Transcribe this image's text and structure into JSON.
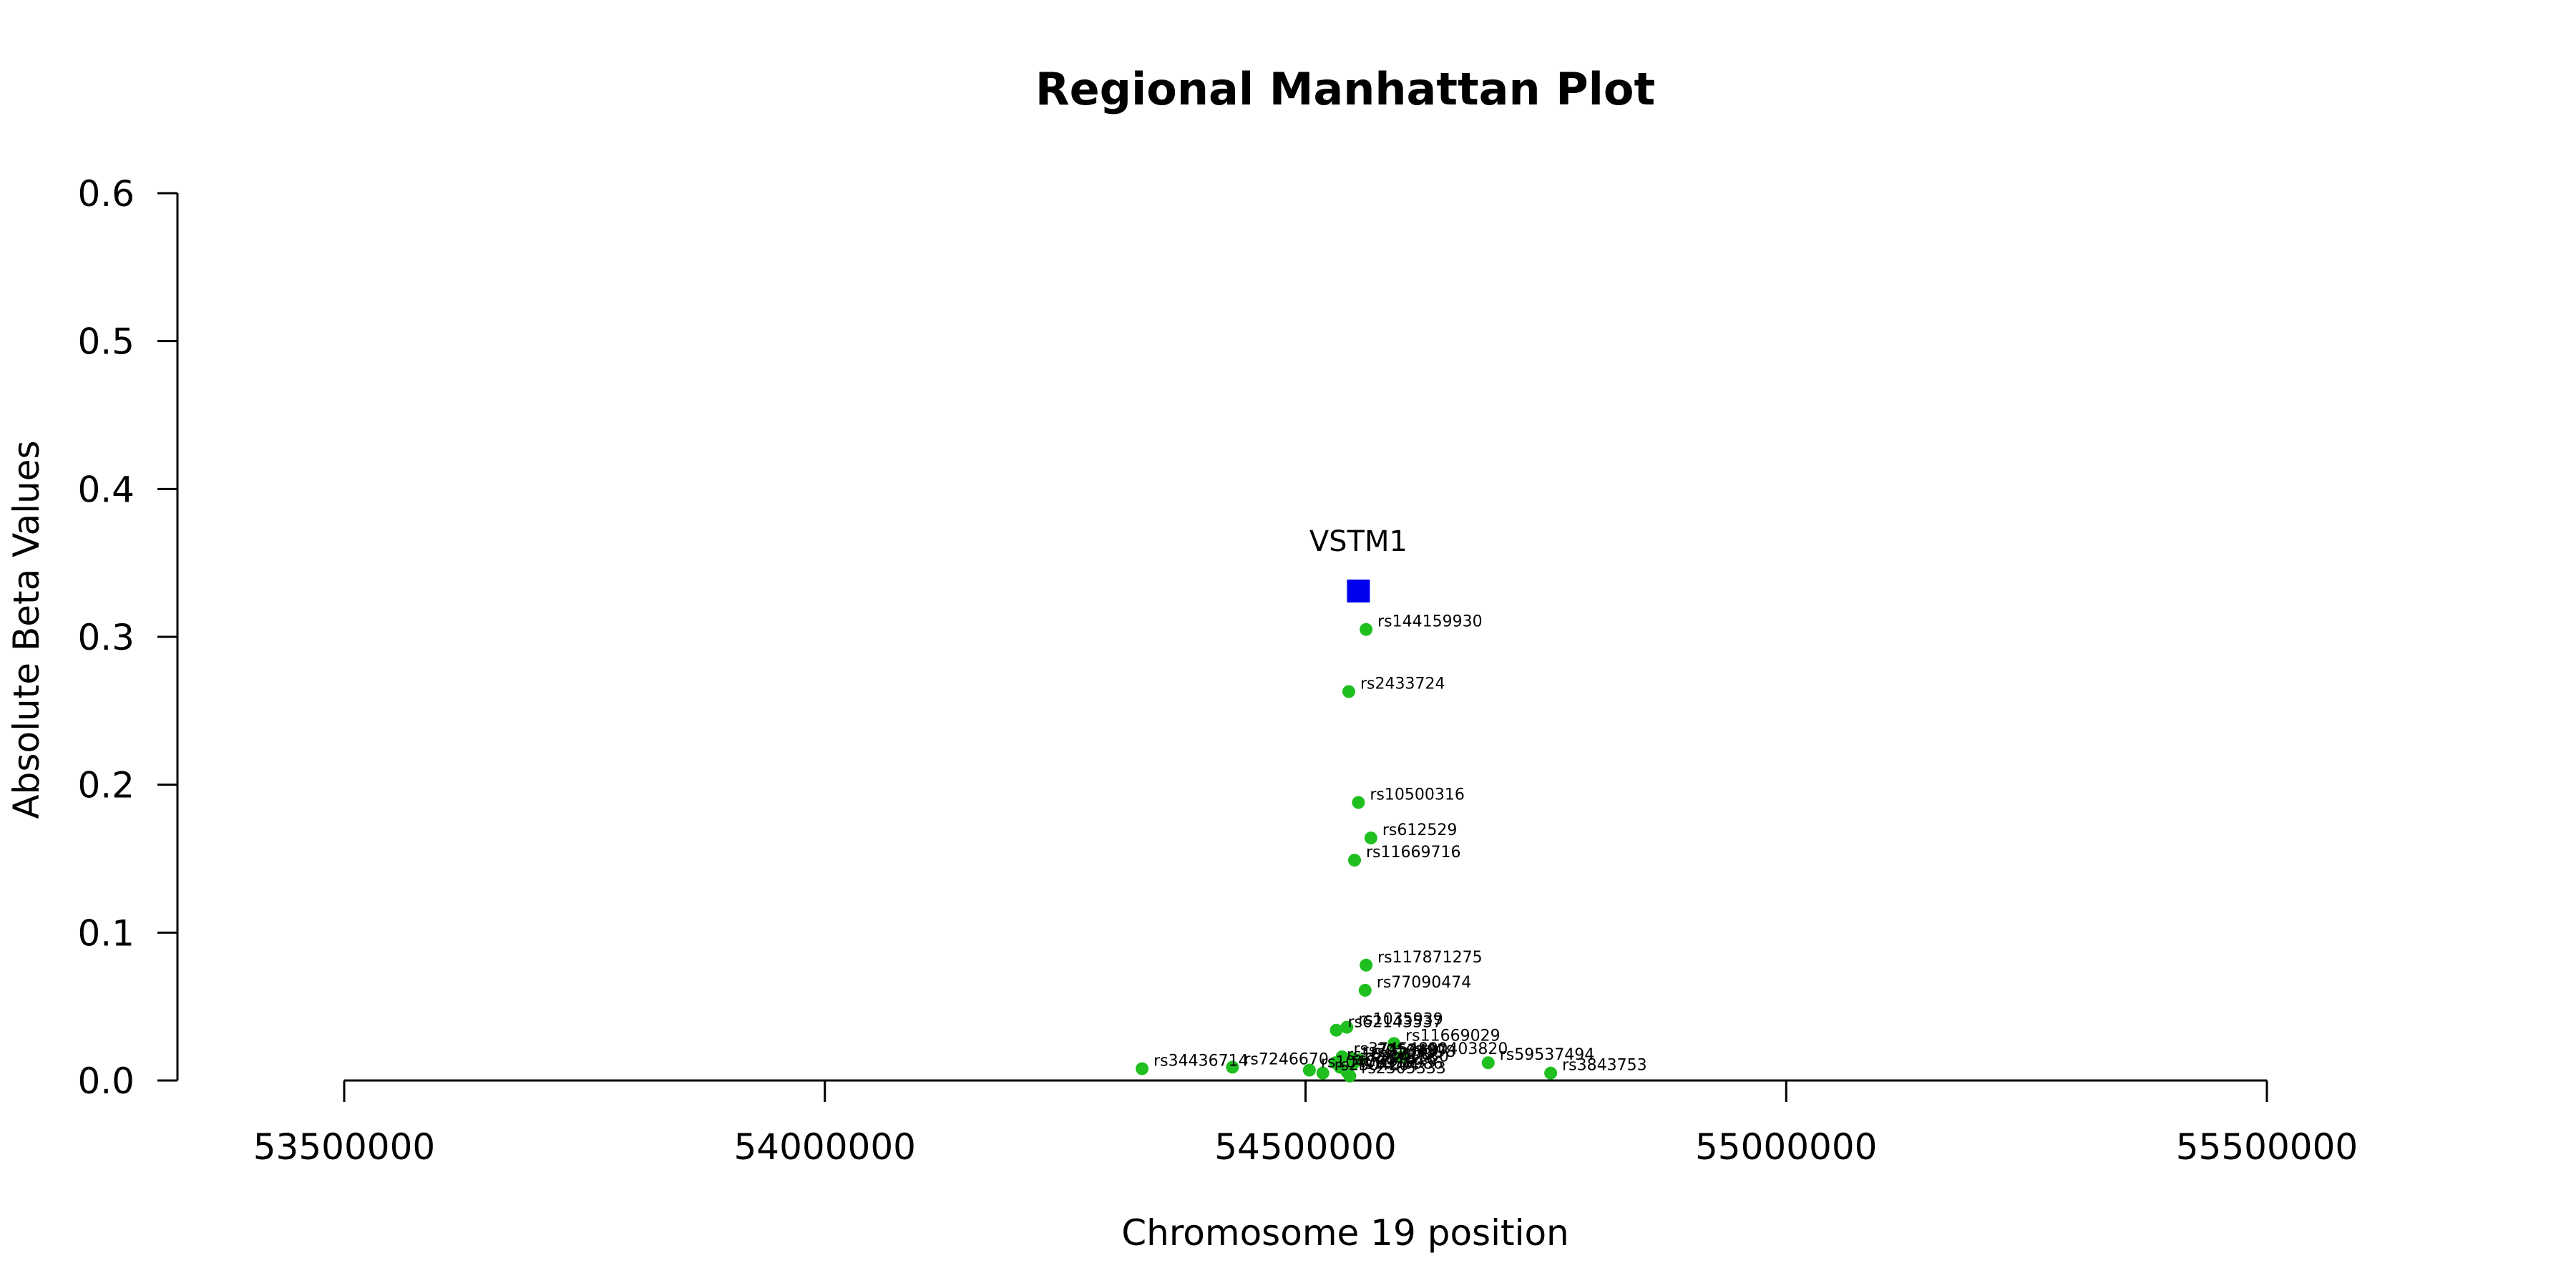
{
  "chart_data": {
    "type": "scatter",
    "title": "Regional Manhattan Plot",
    "xlabel": "Chromosome 19 position",
    "ylabel": "Absolute Beta Values",
    "xlim": [
      53500000,
      55500000
    ],
    "ylim": [
      0,
      0.6
    ],
    "x_ticks": [
      {
        "value": 53500000,
        "label": "53500000"
      },
      {
        "value": 54000000,
        "label": "54000000"
      },
      {
        "value": 54500000,
        "label": "54500000"
      },
      {
        "value": 55000000,
        "label": "55000000"
      },
      {
        "value": 55500000,
        "label": "55500000"
      }
    ],
    "y_ticks": [
      {
        "value": 0.0,
        "label": "0.0"
      },
      {
        "value": 0.1,
        "label": "0.1"
      },
      {
        "value": 0.2,
        "label": "0.2"
      },
      {
        "value": 0.3,
        "label": "0.3"
      },
      {
        "value": 0.4,
        "label": "0.4"
      },
      {
        "value": 0.5,
        "label": "0.5"
      },
      {
        "value": 0.6,
        "label": "0.6"
      }
    ],
    "gene": {
      "name": "VSTM1",
      "x": 54555000,
      "y": 0.331,
      "color": "#0000ee"
    },
    "snp_color": "#1fbf1f",
    "snps": [
      {
        "x": 54563000,
        "y": 0.305,
        "label": "rs144159930"
      },
      {
        "x": 54545000,
        "y": 0.263,
        "label": "rs2433724"
      },
      {
        "x": 54555000,
        "y": 0.188,
        "label": "rs10500316"
      },
      {
        "x": 54568000,
        "y": 0.164,
        "label": "rs612529"
      },
      {
        "x": 54551000,
        "y": 0.149,
        "label": "rs11669716"
      },
      {
        "x": 54563000,
        "y": 0.078,
        "label": "rs117871275"
      },
      {
        "x": 54562000,
        "y": 0.061,
        "label": "rs77090474"
      },
      {
        "x": 54543000,
        "y": 0.036,
        "label": "rs1035939"
      },
      {
        "x": 54532000,
        "y": 0.034,
        "label": "rs62143537"
      },
      {
        "x": 54592000,
        "y": 0.025,
        "label": "rs11669029"
      },
      {
        "x": 54690000,
        "y": 0.012,
        "label": "rs59537494"
      },
      {
        "x": 54755000,
        "y": 0.005,
        "label": "rs3843753"
      },
      {
        "x": 54330000,
        "y": 0.008,
        "label": "rs34436714"
      },
      {
        "x": 54424000,
        "y": 0.009,
        "label": "rs7246670"
      },
      {
        "x": 54538000,
        "y": 0.016,
        "label": "rs3745489"
      },
      {
        "x": 54547000,
        "y": 0.015,
        "label": "rs7253497"
      },
      {
        "x": 54556000,
        "y": 0.014,
        "label": "rs8105198"
      },
      {
        "x": 54600000,
        "y": 0.016,
        "label": "rs10403820"
      },
      {
        "x": 54531000,
        "y": 0.012,
        "label": "rs1645398"
      },
      {
        "x": 54549000,
        "y": 0.011,
        "label": "rs2241530"
      },
      {
        "x": 54536000,
        "y": 0.009,
        "label": "rs7257816"
      },
      {
        "x": 54504000,
        "y": 0.007,
        "label": "rs10408913"
      },
      {
        "x": 54518000,
        "y": 0.005,
        "label": "rs2304204"
      },
      {
        "x": 54543000,
        "y": 0.006,
        "label": "rs1056986"
      },
      {
        "x": 54546000,
        "y": 0.003,
        "label": "rs2305333"
      }
    ]
  }
}
